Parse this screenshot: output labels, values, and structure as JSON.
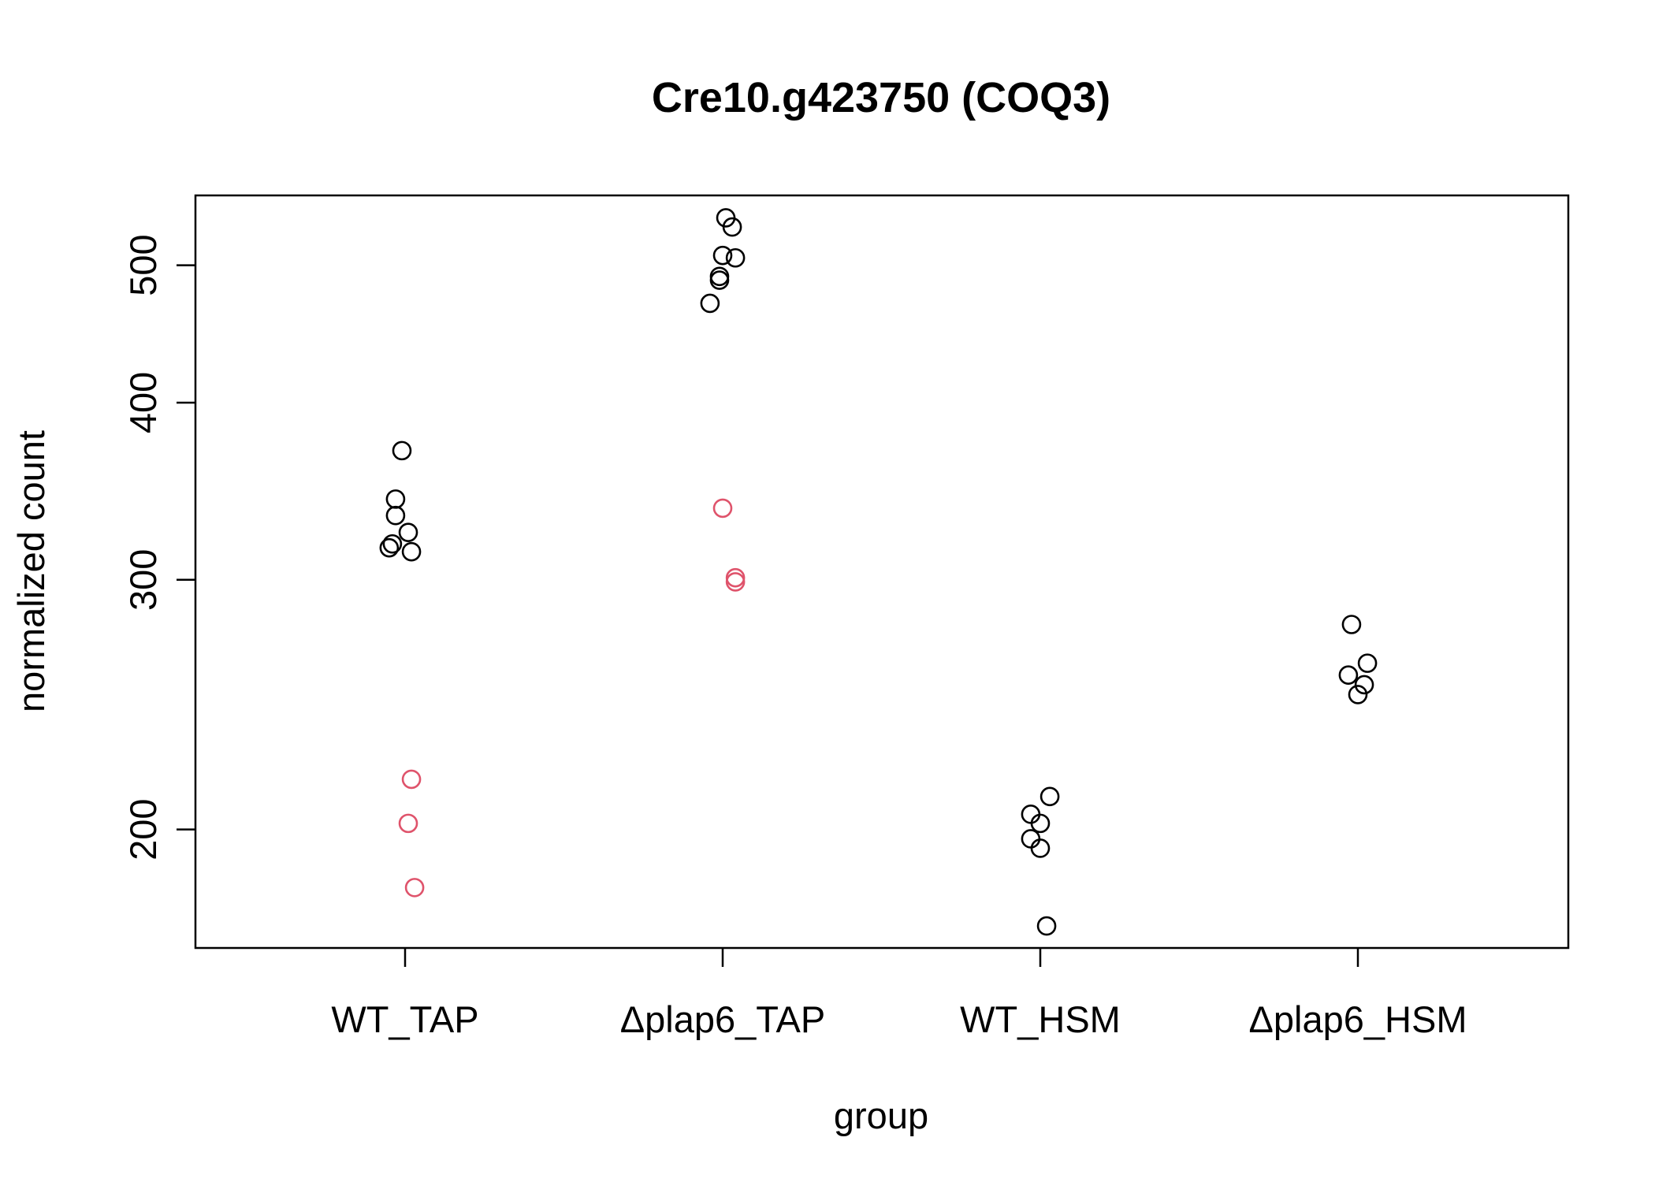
{
  "chart_data": {
    "type": "scatter",
    "title": "Cre10.g423750 (COQ3)",
    "xlabel": "group",
    "ylabel": "normalized count",
    "y_scale": "log",
    "ylim": [
      165,
      560
    ],
    "y_ticks": [
      200,
      300,
      400,
      500
    ],
    "grid": false,
    "legend": "none",
    "categories": [
      "WT_TAP",
      "Δplap6_TAP",
      "WT_HSM",
      "Δplap6_HSM"
    ],
    "series": [
      {
        "color": "#000000",
        "points": [
          {
            "category": "WT_TAP",
            "jitter": -0.01,
            "y": 370
          },
          {
            "category": "WT_TAP",
            "jitter": -0.03,
            "y": 342
          },
          {
            "category": "WT_TAP",
            "jitter": -0.03,
            "y": 333
          },
          {
            "category": "WT_TAP",
            "jitter": 0.01,
            "y": 324
          },
          {
            "category": "WT_TAP",
            "jitter": -0.04,
            "y": 318
          },
          {
            "category": "WT_TAP",
            "jitter": -0.05,
            "y": 316
          },
          {
            "category": "WT_TAP",
            "jitter": 0.02,
            "y": 314
          },
          {
            "category": "Δplap6_TAP",
            "jitter": 0.01,
            "y": 540
          },
          {
            "category": "Δplap6_TAP",
            "jitter": 0.03,
            "y": 532
          },
          {
            "category": "Δplap6_TAP",
            "jitter": 0.0,
            "y": 508
          },
          {
            "category": "Δplap6_TAP",
            "jitter": 0.04,
            "y": 506
          },
          {
            "category": "Δplap6_TAP",
            "jitter": -0.01,
            "y": 491
          },
          {
            "category": "Δplap6_TAP",
            "jitter": -0.01,
            "y": 488
          },
          {
            "category": "Δplap6_TAP",
            "jitter": -0.04,
            "y": 470
          },
          {
            "category": "WT_HSM",
            "jitter": 0.03,
            "y": 211
          },
          {
            "category": "WT_HSM",
            "jitter": -0.03,
            "y": 205
          },
          {
            "category": "WT_HSM",
            "jitter": 0.0,
            "y": 202
          },
          {
            "category": "WT_HSM",
            "jitter": -0.03,
            "y": 197
          },
          {
            "category": "WT_HSM",
            "jitter": 0.0,
            "y": 194
          },
          {
            "category": "WT_HSM",
            "jitter": 0.02,
            "y": 171
          },
          {
            "category": "Δplap6_HSM",
            "jitter": -0.02,
            "y": 279
          },
          {
            "category": "Δplap6_HSM",
            "jitter": 0.03,
            "y": 262
          },
          {
            "category": "Δplap6_HSM",
            "jitter": -0.03,
            "y": 257
          },
          {
            "category": "Δplap6_HSM",
            "jitter": 0.02,
            "y": 253
          },
          {
            "category": "Δplap6_HSM",
            "jitter": 0.0,
            "y": 249
          }
        ]
      },
      {
        "color": "#DF536B",
        "points": [
          {
            "category": "WT_TAP",
            "jitter": 0.02,
            "y": 217
          },
          {
            "category": "WT_TAP",
            "jitter": 0.01,
            "y": 202
          },
          {
            "category": "WT_TAP",
            "jitter": 0.03,
            "y": 182
          },
          {
            "category": "Δplap6_TAP",
            "jitter": 0.0,
            "y": 337
          },
          {
            "category": "Δplap6_TAP",
            "jitter": 0.04,
            "y": 301
          },
          {
            "category": "Δplap6_TAP",
            "jitter": 0.04,
            "y": 299
          }
        ]
      }
    ]
  }
}
